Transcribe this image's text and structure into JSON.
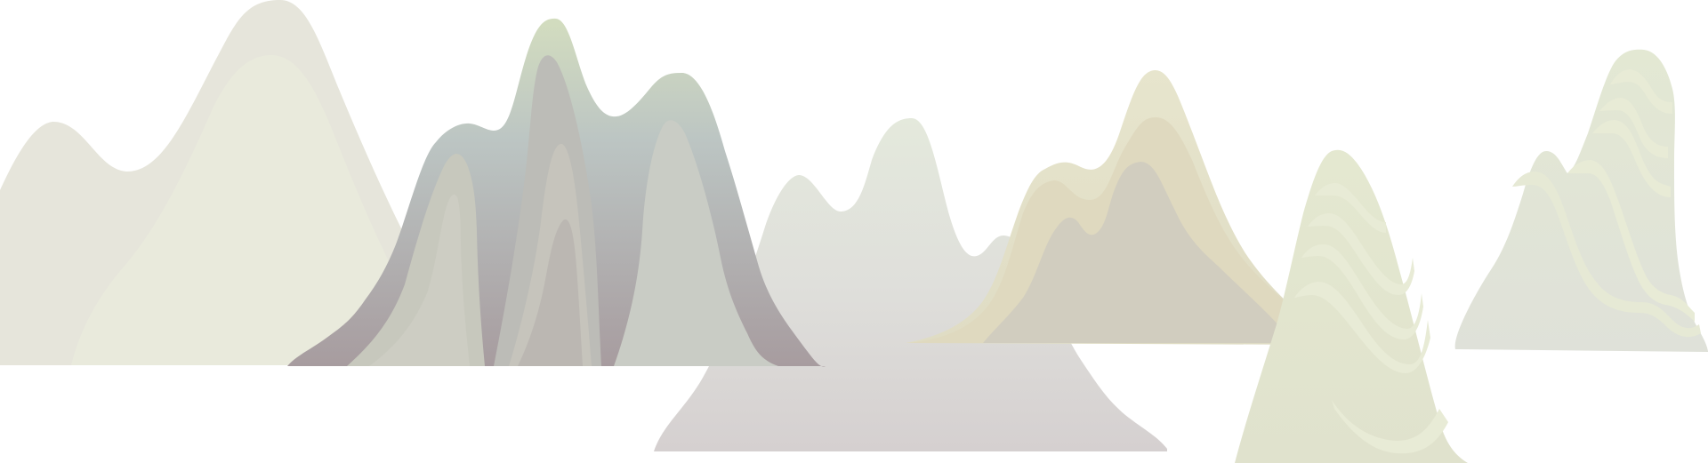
{
  "palette": {
    "background": "#ffffff",
    "mist_light": "#e6e6dc",
    "mist_lighter": "#e9eadc",
    "sage_top": "#cfdcc0",
    "blue_grey": "#bcc5c3",
    "mauve": "#a99fa0",
    "grey_pink": "#d6d2d2",
    "khaki": "#e4e3cc",
    "sand": "#dcd6bd",
    "taupe": "#d0cbbe",
    "pale_green": "#e2e5cf",
    "stripe_light": "#e8ebd6"
  },
  "shapes": [
    "far-left-mountain",
    "striped-mountain",
    "center-mountain",
    "khaki-mountain",
    "green-striped-peak",
    "far-right-mountain"
  ]
}
